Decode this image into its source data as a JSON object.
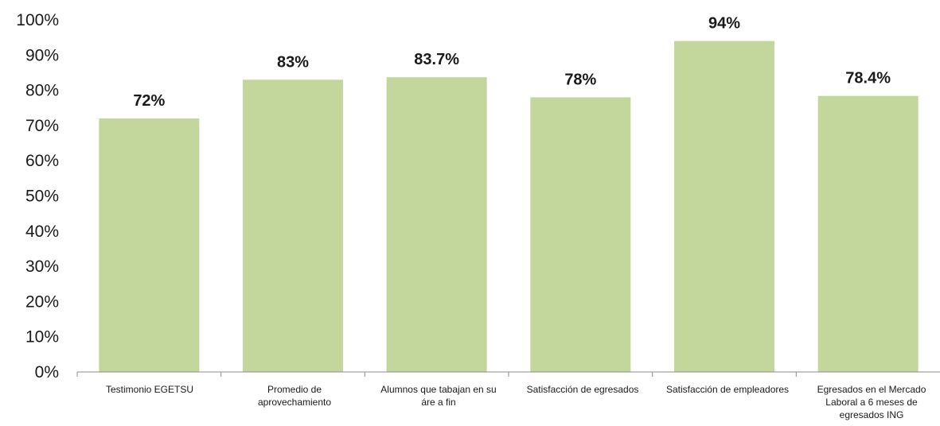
{
  "chart_data": {
    "type": "bar",
    "title": "",
    "xlabel": "",
    "ylabel": "",
    "ylim": [
      0,
      100
    ],
    "yticks": [
      0,
      10,
      20,
      30,
      40,
      50,
      60,
      70,
      80,
      90,
      100
    ],
    "ytick_labels": [
      "0%",
      "10%",
      "20%",
      "30%",
      "40%",
      "50%",
      "60%",
      "70%",
      "80%",
      "90%",
      "100%"
    ],
    "grid": false,
    "legend": "none",
    "categories": [
      "Testimonio EGETSU",
      "Promedio de aprovechamiento",
      "Alumnos que tabajan en su áre a fin",
      "Satisfacción de egresados",
      "Satisfacción de empleadores",
      "Egresados en el Mercado Laboral a 6 meses de egresados ING"
    ],
    "values": [
      72,
      83,
      83.7,
      78,
      94,
      78.4
    ],
    "data_labels": [
      "72%",
      "83%",
      "83.7%",
      "78%",
      "94%",
      "78.4%"
    ],
    "colors": {
      "bar": "#c3d69b",
      "axis": "#8c8c8c",
      "text": "#1a1a1a"
    }
  }
}
